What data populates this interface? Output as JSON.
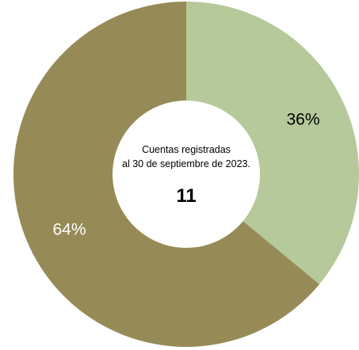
{
  "chart_data": {
    "type": "pie",
    "style": "donut",
    "slices": [
      {
        "value": 36,
        "label": "36%",
        "color": "#b5c99a",
        "label_color": "#000000"
      },
      {
        "value": 64,
        "label": "64%",
        "color": "#968a56",
        "label_color": "#ffffff"
      }
    ],
    "center_caption_line1": "Cuentas registradas",
    "center_caption_line2": "al 30 de septiembre de 2023.",
    "center_value": "11",
    "legend": "none"
  }
}
